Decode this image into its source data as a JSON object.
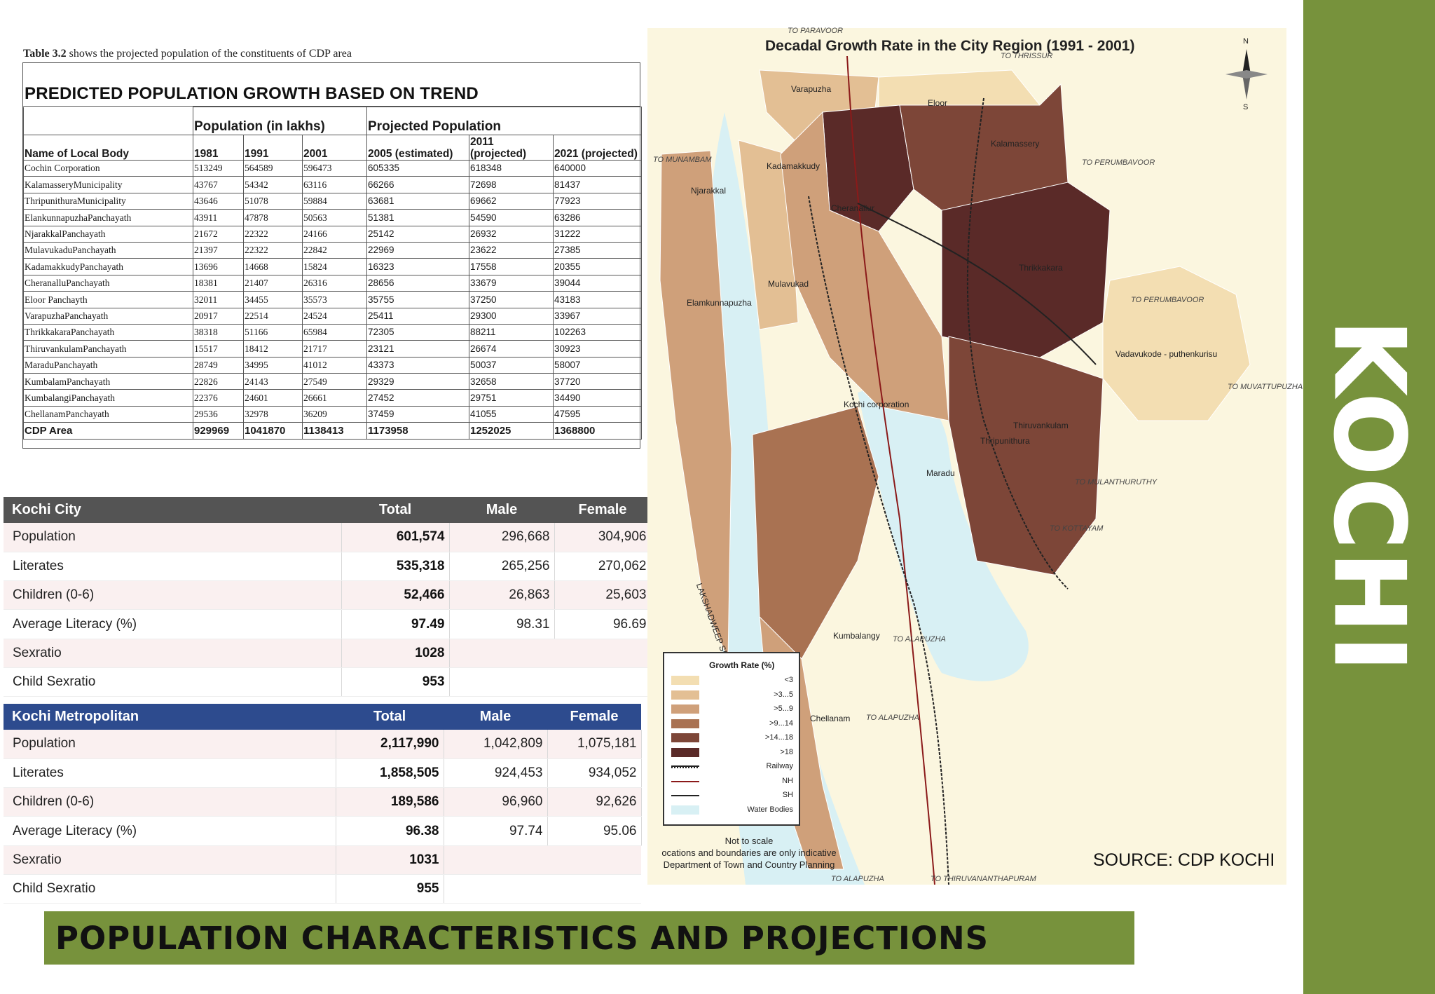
{
  "sidebar": {
    "title": "KOCHI"
  },
  "banner": {
    "title": "POPULATION CHARACTERISTICS AND PROJECTIONS"
  },
  "table32": {
    "caption_bold": "Table 3.2",
    "caption_rest": " shows the projected population of the constituents of CDP area",
    "heading": "PREDICTED POPULATION GROWTH BASED ON TREND",
    "group_population": "Population (in lakhs)",
    "group_projected": "Projected Population",
    "col_name": "Name of Local Body",
    "col_1981": "1981",
    "col_1991": "1991",
    "col_2001": "2001",
    "col_2005": "2005 (estimated)",
    "col_2011": "2011 (projected)",
    "col_2021": "2021 (projected)",
    "rows": [
      [
        "Cochin Corporation",
        "513249",
        "564589",
        "596473",
        "605335",
        "618348",
        "640000"
      ],
      [
        "KalamasseryMunicipality",
        "43767",
        "54342",
        "63116",
        "66266",
        "72698",
        "81437"
      ],
      [
        "ThripunithuraMunicipality",
        "43646",
        "51078",
        "59884",
        "63681",
        "69662",
        "77923"
      ],
      [
        "ElankunnapuzhaPanchayath",
        "43911",
        "47878",
        "50563",
        "51381",
        "54590",
        "63286"
      ],
      [
        "NjarakkalPanchayath",
        "21672",
        "22322",
        "24166",
        "25142",
        "26932",
        "31222"
      ],
      [
        "MulavukaduPanchayath",
        "21397",
        "22322",
        "22842",
        "22969",
        "23622",
        "27385"
      ],
      [
        "KadamakkudyPanchayath",
        "13696",
        "14668",
        "15824",
        "16323",
        "17558",
        "20355"
      ],
      [
        "CheranalluPanchayath",
        "18381",
        "21407",
        "26316",
        "28656",
        "33679",
        "39044"
      ],
      [
        "Eloor Panchayth",
        "32011",
        "34455",
        "35573",
        "35755",
        "37250",
        "43183"
      ],
      [
        "VarapuzhaPanchayath",
        "20917",
        "22514",
        "24524",
        "25411",
        "29300",
        "33967"
      ],
      [
        "ThrikkakaraPanchayath",
        "38318",
        "51166",
        "65984",
        "72305",
        "88211",
        "102263"
      ],
      [
        "ThiruvankulamPanchayath",
        "15517",
        "18412",
        "21717",
        "23121",
        "26674",
        "30923"
      ],
      [
        "MaraduPanchayath",
        "28749",
        "34995",
        "41012",
        "43373",
        "50037",
        "58007"
      ],
      [
        "KumbalamPanchayath",
        "22826",
        "24143",
        "27549",
        "29329",
        "32658",
        "37720"
      ],
      [
        "KumbalangiPanchayath",
        "22376",
        "24601",
        "26661",
        "27452",
        "29751",
        "34490"
      ],
      [
        "ChellanamPanchayath",
        "29536",
        "32978",
        "36209",
        "37459",
        "41055",
        "47595"
      ]
    ],
    "total": [
      "CDP Area",
      "929969",
      "1041870",
      "1138413",
      "1173958",
      "1252025",
      "1368800"
    ]
  },
  "kochi_city": {
    "headers": [
      "Kochi City",
      "Total",
      "Male",
      "Female"
    ],
    "rows": [
      [
        "Population",
        "601,574",
        "296,668",
        "304,906"
      ],
      [
        "Literates",
        "535,318",
        "265,256",
        "270,062"
      ],
      [
        "Children (0-6)",
        "52,466",
        "26,863",
        "25,603"
      ],
      [
        "Average Literacy (%)",
        "97.49",
        "98.31",
        "96.69"
      ],
      [
        "Sexratio",
        "1028",
        "",
        ""
      ],
      [
        "Child Sexratio",
        "953",
        "",
        ""
      ]
    ]
  },
  "kochi_metro": {
    "headers": [
      "Kochi Metropolitan",
      "Total",
      "Male",
      "Female"
    ],
    "rows": [
      [
        "Population",
        "2,117,990",
        "1,042,809",
        "1,075,181"
      ],
      [
        "Literates",
        "1,858,505",
        "924,453",
        "934,052"
      ],
      [
        "Children (0-6)",
        "189,586",
        "96,960",
        "92,626"
      ],
      [
        "Average Literacy (%)",
        "96.38",
        "97.74",
        "95.06"
      ],
      [
        "Sexratio",
        "1031",
        "",
        ""
      ],
      [
        "Child Sexratio",
        "955",
        "",
        ""
      ]
    ]
  },
  "map": {
    "title": "Decadal Growth Rate in the City Region (1991 - 2001)",
    "compass_n": "N",
    "compass_s": "S",
    "legend_title": "Growth Rate (%)",
    "legend": [
      {
        "label": "<3",
        "color": "#f3deb2"
      },
      {
        "label": ">3...5",
        "color": "#e3bf94"
      },
      {
        "label": ">5...9",
        "color": "#cfa07a"
      },
      {
        "label": ">9...14",
        "color": "#a97252"
      },
      {
        "label": ">14...18",
        "color": "#7d4638"
      },
      {
        "label": ">18",
        "color": "#5a2a28"
      },
      {
        "label": "Railway",
        "color": "#222222"
      },
      {
        "label": "NH",
        "color": "#8b1a1a"
      },
      {
        "label": "SH",
        "color": "#222222"
      },
      {
        "label": "Water Bodies",
        "color": "#d8f0f4"
      }
    ],
    "note_line1": "Not to scale",
    "note_line2": "ocations and boundaries are only indicative",
    "note_line3": "Department of Town and Country Planning",
    "places": [
      "Varapuzha",
      "Eloor",
      "Kalamassery",
      "Kadamakkudy",
      "Njarakkal",
      "Cheranallur",
      "Thrikkakara",
      "Mulavukad",
      "Elamkunnapuzha",
      "Vadavukode - puthenkurisu",
      "Kochi corporation",
      "Thiruvankulam",
      "Thripunithura",
      "Maradu",
      "Kumbalangy",
      "Chellanam",
      "LAKSHADWEEP SEA"
    ],
    "roads": [
      "TO PARAVOOR",
      "TO THRISSUR",
      "TO MUNAMBAM",
      "TO PERUMBAVOOR",
      "TO PERUMBAVOOR",
      "TO MUVATTUPUZHA",
      "TO MULANTHURUTHY",
      "TO KOTTAYAM",
      "TO ALAPUZHA",
      "TO ALAPUZHA",
      "TO ALAPUZHA",
      "TO THIRUVANANTHAPURAM"
    ]
  },
  "source": "SOURCE: CDP KOCHI"
}
